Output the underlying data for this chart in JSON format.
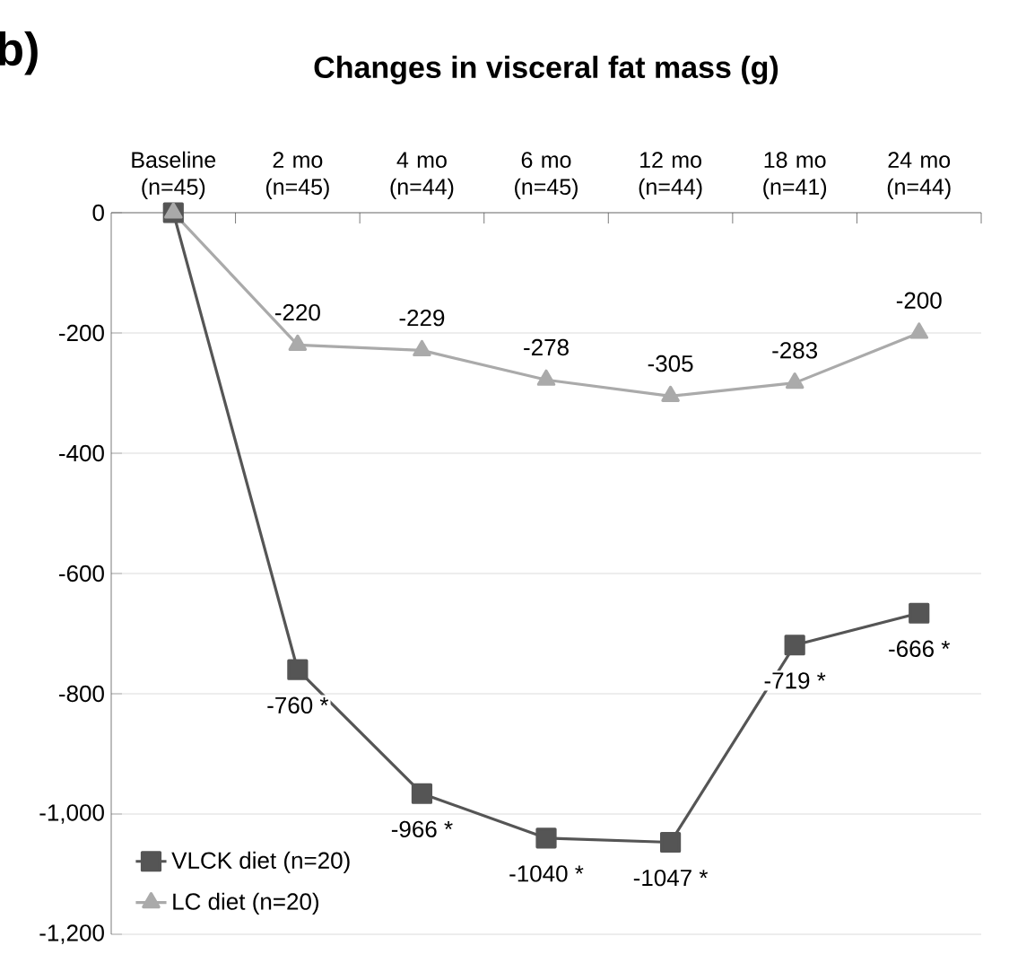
{
  "chart_data": {
    "type": "line",
    "title": "Changes in visceral fat mass (g)",
    "annotations": [
      "b)"
    ],
    "categories": [
      "Baseline (n=45)",
      "2 mo (n=45)",
      "4 mo (n=44)",
      "6 mo (n=45)",
      "12 mo (n=44)",
      "18 mo (n=41)",
      "24 mo (n=44)"
    ],
    "series": [
      {
        "name": "VLCK diet (n=20)",
        "color": "#555555",
        "marker": "square",
        "values": [
          0,
          -760,
          -966,
          -1040,
          -1047,
          -719,
          -666
        ],
        "value_labels": [
          null,
          "-760 *",
          "-966 *",
          "-1040 *",
          "-1047 *",
          "-719 *",
          "-666 *"
        ]
      },
      {
        "name": "LC diet (n=20)",
        "color": "#aaaaaa",
        "marker": "triangle",
        "values": [
          0,
          -220,
          -229,
          -278,
          -305,
          -283,
          -200
        ],
        "value_labels": [
          null,
          "-220",
          "-229",
          "-278",
          "-305",
          "-283",
          "-200"
        ]
      }
    ],
    "ylim": [
      -1200,
      0
    ],
    "yticks": [
      0,
      -200,
      -400,
      -600,
      -800,
      {
        "value": -1000,
        "label": "-1,000"
      },
      {
        "value": -1200,
        "label": "-1,200"
      }
    ],
    "grid": "y",
    "legend": "bottom left",
    "line_style": "solid"
  }
}
